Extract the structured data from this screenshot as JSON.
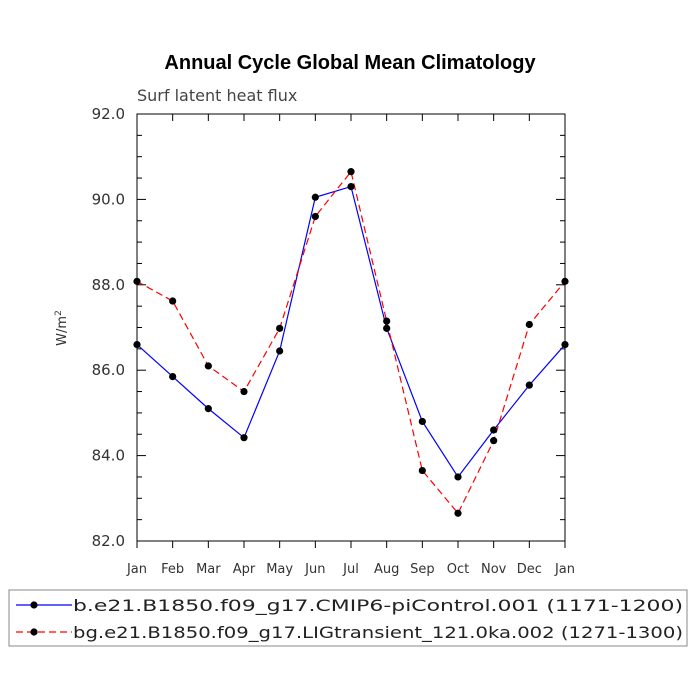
{
  "chart_data": {
    "type": "line",
    "title": "Annual Cycle Global Mean Climatology",
    "subtitle": "Surf latent heat flux",
    "ylabel_base": "W/m",
    "ylabel_sup": "2",
    "xlabel": "",
    "categories": [
      "Jan",
      "Feb",
      "Mar",
      "Apr",
      "May",
      "Jun",
      "Jul",
      "Aug",
      "Sep",
      "Oct",
      "Nov",
      "Dec",
      "Jan"
    ],
    "ylim": [
      82.0,
      92.0
    ],
    "yticks": [
      82.0,
      84.0,
      86.0,
      88.0,
      90.0,
      92.0
    ],
    "ytick_labels": [
      "82.0",
      "84.0",
      "86.0",
      "88.0",
      "90.0",
      "92.0"
    ],
    "grid": false,
    "legend_position": "bottom",
    "series": [
      {
        "name": "b.e21.B1850.f09_g17.CMIP6-piControl.001 (1171-1200)",
        "color": "#0000ff",
        "dash": "solid",
        "values": [
          86.6,
          85.85,
          85.1,
          84.42,
          86.45,
          90.05,
          90.3,
          86.98,
          84.8,
          83.5,
          84.6,
          85.65,
          86.6
        ]
      },
      {
        "name": "bg.e21.B1850.f09_g17.LIGtransient_121.0ka.002 (1271-1300)",
        "color": "#ff0000",
        "dash": "dashed",
        "values": [
          88.08,
          87.62,
          86.1,
          85.5,
          86.98,
          89.6,
          90.65,
          87.15,
          83.65,
          82.65,
          84.35,
          87.07,
          88.08
        ]
      }
    ]
  }
}
